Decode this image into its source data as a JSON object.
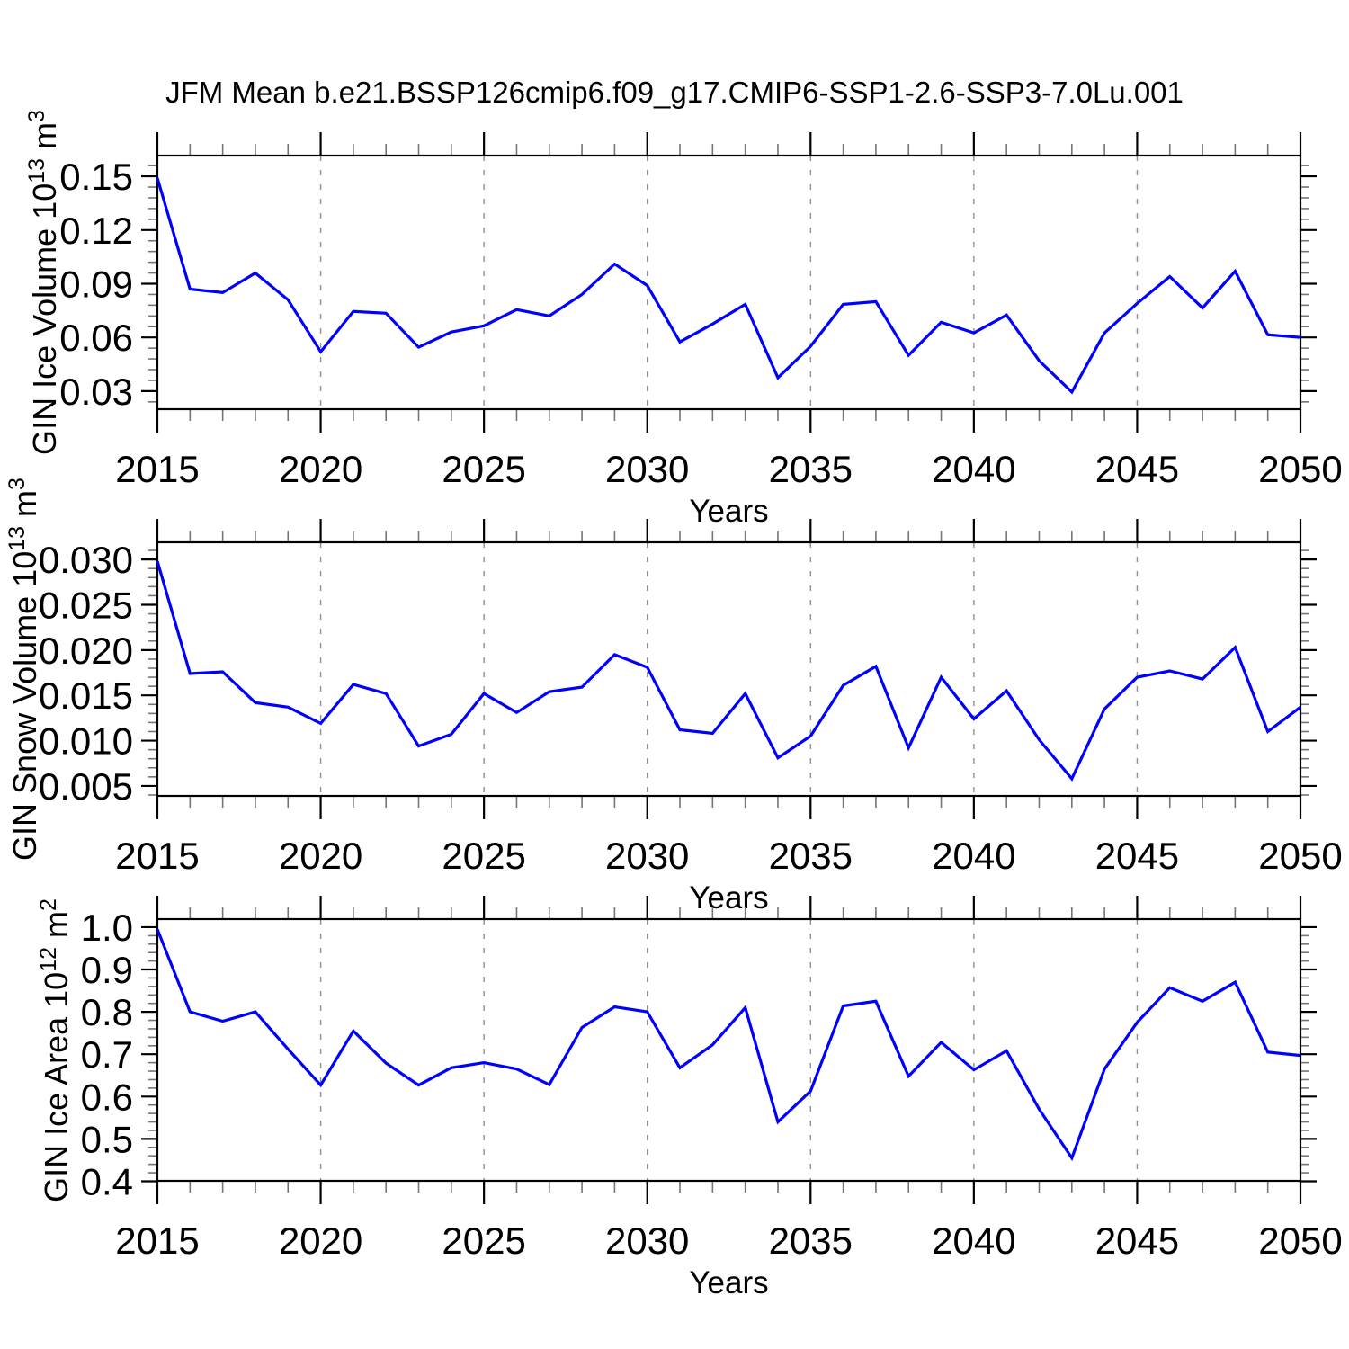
{
  "title": "JFM Mean b.e21.BSSP126cmip6.f09_g17.CMIP6-SSP1-2.6-SSP3-7.0Lu.001",
  "style": {
    "line_color": "#0000ff",
    "grid_color": "#8f8f8f",
    "axis_color": "#000000",
    "minor_tick_color": "#757575"
  },
  "chart_data": [
    {
      "type": "line",
      "panel_id": "ice-volume",
      "ylabel": "GIN Ice Volume 10^13 m^3",
      "ylabel_segments": [
        {
          "t": "GIN Ice Volume 10"
        },
        {
          "t": "13",
          "sup": true
        },
        {
          "t": " m"
        },
        {
          "t": "3",
          "sup": true
        }
      ],
      "xlabel": "Years",
      "xlim": [
        2015,
        2050
      ],
      "ylim": [
        0.0199,
        0.1616
      ],
      "x_minor_step": 1,
      "y_minor_step": 0.006,
      "xticks_major": [
        2015,
        2020,
        2025,
        2030,
        2035,
        2040,
        2045,
        2050
      ],
      "xtick_labels": [
        "2015",
        "2020",
        "2025",
        "2030",
        "2035",
        "2040",
        "2045",
        "2050"
      ],
      "grid_x": [
        2020,
        2025,
        2030,
        2035,
        2040,
        2045
      ],
      "ytick_values": [
        0.03,
        0.06,
        0.09,
        0.12,
        0.15
      ],
      "ytick_labels": [
        "0.03",
        "0.06",
        "0.09",
        "0.12",
        "0.15"
      ],
      "x": [
        2015,
        2016,
        2017,
        2018,
        2019,
        2020,
        2021,
        2022,
        2023,
        2024,
        2025,
        2026,
        2027,
        2028,
        2029,
        2030,
        2031,
        2032,
        2033,
        2034,
        2035,
        2036,
        2037,
        2038,
        2039,
        2040,
        2041,
        2042,
        2043,
        2044,
        2045,
        2046,
        2047,
        2048,
        2049,
        2050
      ],
      "values": [
        0.149,
        0.087,
        0.085,
        0.096,
        0.081,
        0.052,
        0.0745,
        0.0735,
        0.0545,
        0.063,
        0.0665,
        0.0755,
        0.072,
        0.084,
        0.101,
        0.089,
        0.0575,
        0.0675,
        0.0785,
        0.0375,
        0.055,
        0.0785,
        0.08,
        0.05,
        0.0685,
        0.0625,
        0.0725,
        0.047,
        0.0295,
        0.0625,
        0.079,
        0.094,
        0.0765,
        0.097,
        0.0615,
        0.06
      ]
    },
    {
      "type": "line",
      "panel_id": "snow-volume",
      "ylabel": "GIN Snow Volume 10^13 m^3",
      "ylabel_segments": [
        {
          "t": "GIN Snow Volume 10"
        },
        {
          "t": "13",
          "sup": true
        },
        {
          "t": " m"
        },
        {
          "t": "3",
          "sup": true
        }
      ],
      "xlabel": "Years",
      "xlim": [
        2015,
        2050
      ],
      "ylim": [
        0.0039,
        0.0319
      ],
      "x_minor_step": 1,
      "y_minor_step": 0.001,
      "xticks_major": [
        2015,
        2020,
        2025,
        2030,
        2035,
        2040,
        2045,
        2050
      ],
      "xtick_labels": [
        "2015",
        "2020",
        "2025",
        "2030",
        "2035",
        "2040",
        "2045",
        "2050"
      ],
      "grid_x": [
        2020,
        2025,
        2030,
        2035,
        2040,
        2045
      ],
      "ytick_values": [
        0.005,
        0.01,
        0.015,
        0.02,
        0.025,
        0.03
      ],
      "ytick_labels": [
        "0.005",
        "0.010",
        "0.015",
        "0.020",
        "0.025",
        "0.030"
      ],
      "x": [
        2015,
        2016,
        2017,
        2018,
        2019,
        2020,
        2021,
        2022,
        2023,
        2024,
        2025,
        2026,
        2027,
        2028,
        2029,
        2030,
        2031,
        2032,
        2033,
        2034,
        2035,
        2036,
        2037,
        2038,
        2039,
        2040,
        2041,
        2042,
        2043,
        2044,
        2045,
        2046,
        2047,
        2048,
        2049,
        2050
      ],
      "values": [
        0.0298,
        0.0174,
        0.0176,
        0.0142,
        0.0137,
        0.0119,
        0.0162,
        0.0152,
        0.0094,
        0.0107,
        0.0152,
        0.0131,
        0.0154,
        0.0159,
        0.0195,
        0.0181,
        0.0112,
        0.0108,
        0.0152,
        0.0081,
        0.0105,
        0.0161,
        0.0182,
        0.0092,
        0.017,
        0.0124,
        0.0155,
        0.0101,
        0.0058,
        0.0135,
        0.017,
        0.0177,
        0.0168,
        0.0203,
        0.011,
        0.0137
      ]
    },
    {
      "type": "line",
      "panel_id": "ice-area",
      "ylabel": "GIN Ice Area 10^12 m^2",
      "ylabel_segments": [
        {
          "t": "GIN Ice Area 10"
        },
        {
          "t": "12",
          "sup": true
        },
        {
          "t": " m"
        },
        {
          "t": "2",
          "sup": true
        }
      ],
      "xlabel": "Years",
      "xlim": [
        2015,
        2050
      ],
      "ylim": [
        0.401,
        1.019
      ],
      "x_minor_step": 1,
      "y_minor_step": 0.02,
      "xticks_major": [
        2015,
        2020,
        2025,
        2030,
        2035,
        2040,
        2045,
        2050
      ],
      "xtick_labels": [
        "2015",
        "2020",
        "2025",
        "2030",
        "2035",
        "2040",
        "2045",
        "2050"
      ],
      "grid_x": [
        2020,
        2025,
        2030,
        2035,
        2040,
        2045
      ],
      "ytick_values": [
        0.4,
        0.5,
        0.6,
        0.7,
        0.8,
        0.9,
        1.0
      ],
      "ytick_labels": [
        "0.4",
        "0.5",
        "0.6",
        "0.7",
        "0.8",
        "0.9",
        "1.0"
      ],
      "x": [
        2015,
        2016,
        2017,
        2018,
        2019,
        2020,
        2021,
        2022,
        2023,
        2024,
        2025,
        2026,
        2027,
        2028,
        2029,
        2030,
        2031,
        2032,
        2033,
        2034,
        2035,
        2036,
        2037,
        2038,
        2039,
        2040,
        2041,
        2042,
        2043,
        2044,
        2045,
        2046,
        2047,
        2048,
        2049,
        2050
      ],
      "values": [
        0.995,
        0.8,
        0.778,
        0.8,
        0.712,
        0.627,
        0.755,
        0.679,
        0.627,
        0.668,
        0.68,
        0.665,
        0.628,
        0.763,
        0.812,
        0.8,
        0.668,
        0.722,
        0.81,
        0.54,
        0.613,
        0.814,
        0.825,
        0.648,
        0.728,
        0.663,
        0.708,
        0.57,
        0.455,
        0.665,
        0.775,
        0.857,
        0.825,
        0.87,
        0.705,
        0.697
      ]
    }
  ]
}
